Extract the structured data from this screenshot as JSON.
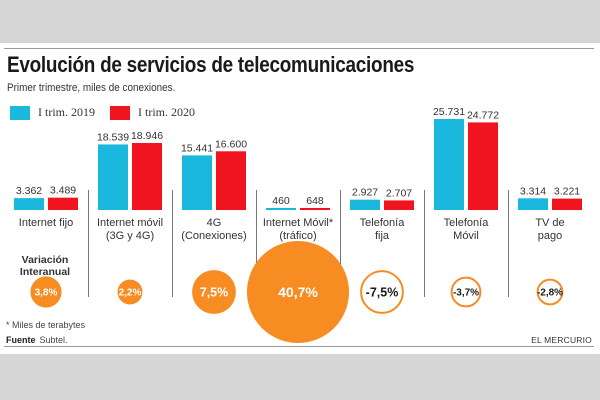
{
  "header": {
    "title": "Evolución de servicios de telecomunicaciones",
    "subtitle": "Primer trimestre, miles de conexiones."
  },
  "colors": {
    "series_2019": "#1ab8dc",
    "series_2020": "#f0141e",
    "variation": "#f78c22",
    "background": "#d6d6d6",
    "panel": "#ffffff"
  },
  "chart_data": {
    "type": "bar",
    "title": "Evolución de servicios de telecomunicaciones",
    "subtitle": "Primer trimestre, miles de conexiones.",
    "legend_position": "top-left",
    "categories": [
      {
        "line1": "Internet fijo",
        "line2": ""
      },
      {
        "line1": "Internet móvil",
        "line2": "(3G y 4G)"
      },
      {
        "line1": "4G",
        "line2": "(Conexiones)"
      },
      {
        "line1": "Internet Móvil*",
        "line2": "(tráfico)"
      },
      {
        "line1": "Telefonía",
        "line2": "fija"
      },
      {
        "line1": "Telefonía",
        "line2": "Móvil"
      },
      {
        "line1": "TV de",
        "line2": "pago"
      }
    ],
    "series": [
      {
        "name": "I trim. 2019",
        "values": [
          3362,
          18539,
          15441,
          460,
          2927,
          25731,
          3314
        ],
        "labels": [
          "3.362",
          "18.539",
          "15.441",
          "460",
          "2.927",
          "25.731",
          "3.314"
        ]
      },
      {
        "name": "I trim. 2020",
        "values": [
          3489,
          18946,
          16600,
          648,
          2707,
          24772,
          3221
        ],
        "labels": [
          "3.489",
          "18.946",
          "16.600",
          "648",
          "2.707",
          "24.772",
          "3.221"
        ]
      }
    ],
    "variation": {
      "title_line1": "Variación",
      "title_line2": "Interanual",
      "values": [
        3.8,
        2.2,
        7.5,
        40.7,
        -7.5,
        -3.7,
        -2.8
      ],
      "labels": [
        "3,8%",
        "2,2%",
        "7,5%",
        "40,7%",
        "-7,5%",
        "-3,7%",
        "-2,8%"
      ]
    },
    "xlabel": "",
    "ylabel": "",
    "grid": false
  },
  "footer": {
    "footnote": "* Miles de terabytes",
    "source_label": "Fuente",
    "source_value": "Subtel.",
    "brand": "EL MERCURIO"
  }
}
